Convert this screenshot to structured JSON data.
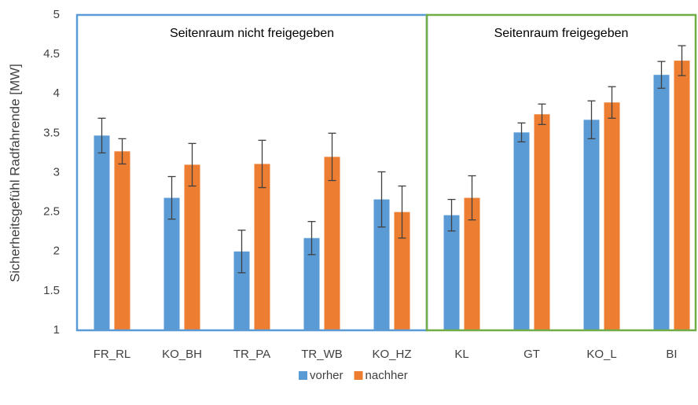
{
  "chart_data": {
    "type": "bar",
    "y_label": "Sicherheitsgefühl Radfahrende [MW]",
    "categories": [
      "FR_RL",
      "KO_BH",
      "TR_PA",
      "TR_WB",
      "KO_HZ",
      "KL",
      "GT",
      "KO_L",
      "BI"
    ],
    "series": [
      {
        "name": "vorher",
        "color": "#5b9bd5",
        "values": [
          3.47,
          2.68,
          2.0,
          2.17,
          2.66,
          2.46,
          3.51,
          3.67,
          4.24
        ],
        "errors": [
          0.22,
          0.27,
          0.27,
          0.21,
          0.35,
          0.2,
          0.12,
          0.24,
          0.17
        ]
      },
      {
        "name": "nachher",
        "color": "#ed7d31",
        "values": [
          3.27,
          3.1,
          3.11,
          3.2,
          2.5,
          2.68,
          3.74,
          3.89,
          4.42
        ],
        "errors": [
          0.16,
          0.27,
          0.3,
          0.3,
          0.33,
          0.28,
          0.13,
          0.2,
          0.19
        ]
      }
    ],
    "regions": [
      {
        "label": "Seitenraum nicht freigegeben",
        "color": "#5b9bd5"
      },
      {
        "label": "Seitenraum freigegeben",
        "color": "#70ad47"
      }
    ],
    "ylim": [
      1,
      5
    ],
    "yticks": [
      1,
      1.5,
      2,
      2.5,
      3,
      3.5,
      4,
      4.5,
      5
    ],
    "legend": "bottom"
  }
}
